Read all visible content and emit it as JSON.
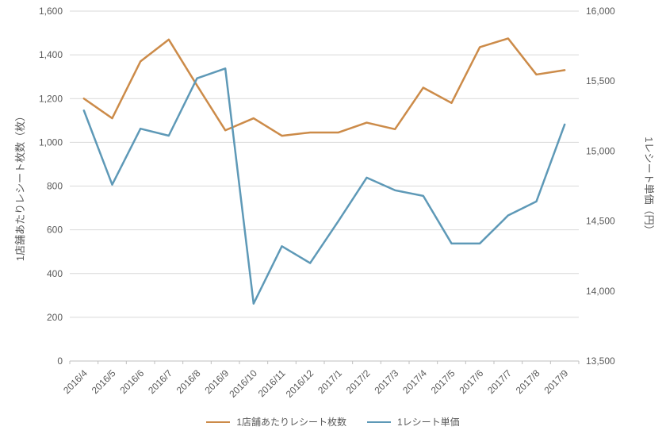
{
  "chart_data": {
    "type": "line",
    "title": "",
    "categories": [
      "2016/4",
      "2016/5",
      "2016/6",
      "2016/7",
      "2016/8",
      "2016/9",
      "2016/10",
      "2016/11",
      "2016/12",
      "2017/1",
      "2017/2",
      "2017/3",
      "2017/4",
      "2017/5",
      "2017/6",
      "2017/7",
      "2017/8",
      "2017/9"
    ],
    "series": [
      {
        "name": "1店舗あたりレシート枚数",
        "axis": "left",
        "color": "#CC8B49",
        "values": [
          1200,
          1110,
          1370,
          1470,
          1260,
          1055,
          1110,
          1030,
          1045,
          1045,
          1090,
          1060,
          1250,
          1180,
          1435,
          1475,
          1310,
          1330
        ]
      },
      {
        "name": "1レシート単価",
        "axis": "right",
        "color": "#5E99B7",
        "values": [
          15290,
          14760,
          15160,
          15110,
          15520,
          15590,
          13910,
          14320,
          14200,
          14500,
          14810,
          14720,
          14680,
          14340,
          14340,
          14540,
          14640,
          15190
        ]
      }
    ],
    "left_axis": {
      "title": "1店舗あたりレシート枚数（枚）",
      "min": 0,
      "max": 1600,
      "step": 200,
      "tick_labels": [
        "0",
        "200",
        "400",
        "600",
        "800",
        "1,000",
        "1,200",
        "1,400",
        "1,600"
      ]
    },
    "right_axis": {
      "title": "1レシート単価（円）",
      "min": 13500,
      "max": 16000,
      "step": 500,
      "tick_labels": [
        "13,500",
        "14,000",
        "14,500",
        "15,000",
        "15,500",
        "16,000"
      ]
    },
    "legend": {
      "position": "bottom"
    },
    "grid": true,
    "colors": {
      "axis_text": "#595959",
      "axis_line": "#BFBFBF",
      "gridline": "#D9D9D9",
      "background": "#FFFFFF"
    }
  }
}
